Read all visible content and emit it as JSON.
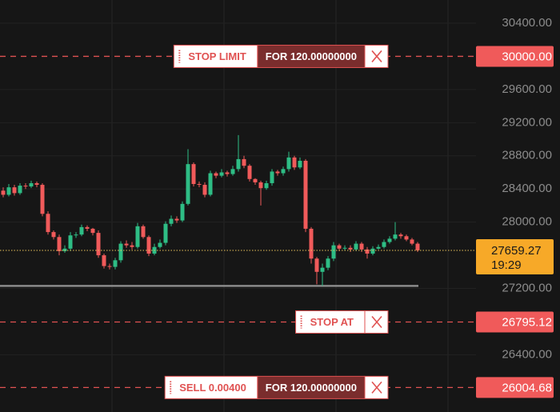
{
  "chart_data": {
    "type": "candlestick",
    "ylim": [
      25709,
      30680
    ],
    "yticks": [
      {
        "value": 30400,
        "label": "30400.00"
      },
      {
        "value": 29600,
        "label": "29600.00"
      },
      {
        "value": 29200,
        "label": "29200.00"
      },
      {
        "value": 28800,
        "label": "28800.00"
      },
      {
        "value": 28400,
        "label": "28400.00"
      },
      {
        "value": 28000,
        "label": "28000.00"
      },
      {
        "value": 27200,
        "label": "27200.00"
      },
      {
        "value": 26400,
        "label": "26400.00"
      }
    ],
    "grid": true,
    "up_color": "#2ebd85",
    "down_color": "#f05a5a",
    "series": {
      "open": [
        28380,
        28330,
        28420,
        28350,
        28440,
        28430,
        28470,
        28450,
        28100,
        27880,
        27820,
        27650,
        27680,
        27840,
        27850,
        27940,
        27920,
        27870,
        27600,
        27470,
        27460,
        27540,
        27740,
        27720,
        27700,
        27950,
        27820,
        27620,
        27700,
        27750,
        27980,
        28040,
        28020,
        28220,
        28700,
        28460,
        28450,
        28330,
        28590,
        28560,
        28600,
        28580,
        28640,
        28760,
        28680,
        28520,
        28480,
        28410,
        28470,
        28610,
        28590,
        28640,
        28780,
        28660,
        28740,
        27920,
        27560,
        27400,
        27450,
        27560,
        27720,
        27680,
        27690,
        27670,
        27740,
        27670,
        27620,
        27680,
        27700,
        27760,
        27800,
        27850,
        27830,
        27790,
        27740
      ],
      "high": [
        28420,
        28460,
        28450,
        28470,
        28470,
        28500,
        28490,
        28470,
        28130,
        27900,
        27850,
        27720,
        27880,
        27880,
        27970,
        27960,
        27930,
        27900,
        27620,
        27500,
        27570,
        27770,
        27780,
        27760,
        27990,
        27970,
        27840,
        27740,
        27790,
        28010,
        28080,
        28070,
        28250,
        28880,
        28720,
        28490,
        28480,
        28620,
        28610,
        28640,
        28620,
        28680,
        29050,
        28800,
        28700,
        28530,
        28500,
        28500,
        28640,
        28630,
        28670,
        28850,
        28800,
        28780,
        28760,
        27940,
        27580,
        27500,
        27590,
        27760,
        27740,
        27720,
        27720,
        27770,
        27760,
        27700,
        27710,
        27730,
        27790,
        27830,
        28000,
        27870,
        27850,
        27810,
        27760
      ],
      "low": [
        28300,
        28310,
        28320,
        28330,
        28400,
        28410,
        28420,
        28070,
        27850,
        27790,
        27600,
        27630,
        27650,
        27810,
        27830,
        27890,
        27840,
        27570,
        27440,
        27430,
        27430,
        27510,
        27690,
        27670,
        27680,
        27800,
        27590,
        27600,
        27680,
        27720,
        27950,
        27990,
        28000,
        28200,
        28430,
        28420,
        28300,
        28310,
        28530,
        28540,
        28550,
        28560,
        28610,
        28650,
        28490,
        28450,
        28200,
        28390,
        28440,
        28560,
        28560,
        28610,
        28630,
        28640,
        27880,
        27500,
        27250,
        27230,
        27420,
        27530,
        27650,
        27660,
        27640,
        27650,
        27640,
        27560,
        27600,
        27670,
        27680,
        27740,
        27780,
        27800,
        27770,
        27720,
        27640
      ],
      "close": [
        28330,
        28420,
        28350,
        28440,
        28430,
        28470,
        28450,
        28100,
        27880,
        27820,
        27650,
        27680,
        27840,
        27850,
        27940,
        27920,
        27870,
        27600,
        27470,
        27460,
        27540,
        27740,
        27720,
        27700,
        27950,
        27820,
        27620,
        27700,
        27750,
        27980,
        28040,
        28020,
        28220,
        28700,
        28460,
        28450,
        28330,
        28590,
        28560,
        28600,
        28580,
        28640,
        28760,
        28680,
        28520,
        28480,
        28410,
        28470,
        28610,
        28590,
        28640,
        28780,
        28660,
        28740,
        27920,
        27560,
        27400,
        27450,
        27560,
        27720,
        27680,
        27690,
        27670,
        27740,
        27670,
        27620,
        27680,
        27700,
        27760,
        27800,
        27850,
        27830,
        27790,
        27740,
        27660
      ]
    },
    "horizontal_line": 27230,
    "current_price": {
      "value": 27659.27,
      "countdown": "19:29"
    },
    "orders": [
      {
        "kind": "STOP LIMIT",
        "amount": "FOR 120.00000000",
        "price": {
          "value": 30000,
          "label": "30000.00"
        }
      },
      {
        "kind": "STOP AT",
        "price": 26795.12
      },
      {
        "kind": "SELL 0.00400",
        "amount": "FOR 120.00000000",
        "price": 26004.68
      }
    ]
  }
}
